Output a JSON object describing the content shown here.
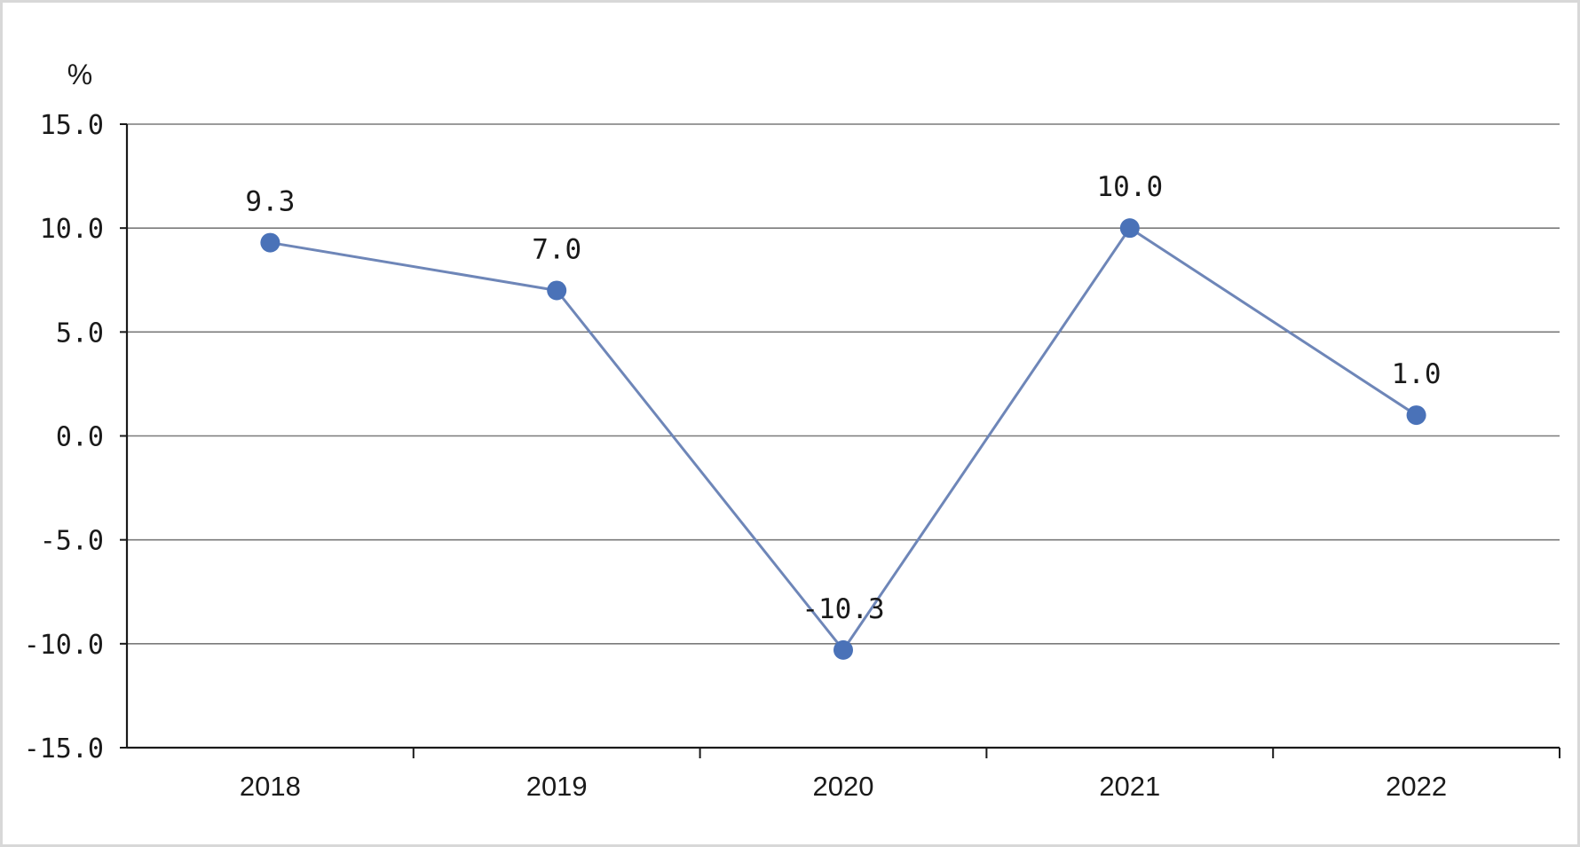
{
  "chart_data": {
    "type": "line",
    "title": "",
    "xlabel": "",
    "ylabel": "%",
    "categories": [
      "2018",
      "2019",
      "2020",
      "2021",
      "2022"
    ],
    "series": [
      {
        "values": [
          9.3,
          7.0,
          -10.3,
          10.0,
          1.0
        ]
      }
    ],
    "data_labels": [
      "9.3",
      "7.0",
      "-10.3",
      "10.0",
      "1.0"
    ],
    "ylim": [
      -15,
      15
    ],
    "y_ticks": [
      15,
      10,
      5,
      0,
      -5,
      -10,
      -15
    ],
    "y_tick_labels": [
      "15.0",
      "10.0",
      "5.0",
      "0.0",
      "-5.0",
      "-10.0",
      "-15.0"
    ],
    "grid": true,
    "legend": "none",
    "colors": {
      "line": "#6e86b8",
      "marker": "#4a72b8",
      "grid": "#7a7a7a",
      "axis": "#1a1a1a",
      "border": "#d8d8d8"
    }
  }
}
